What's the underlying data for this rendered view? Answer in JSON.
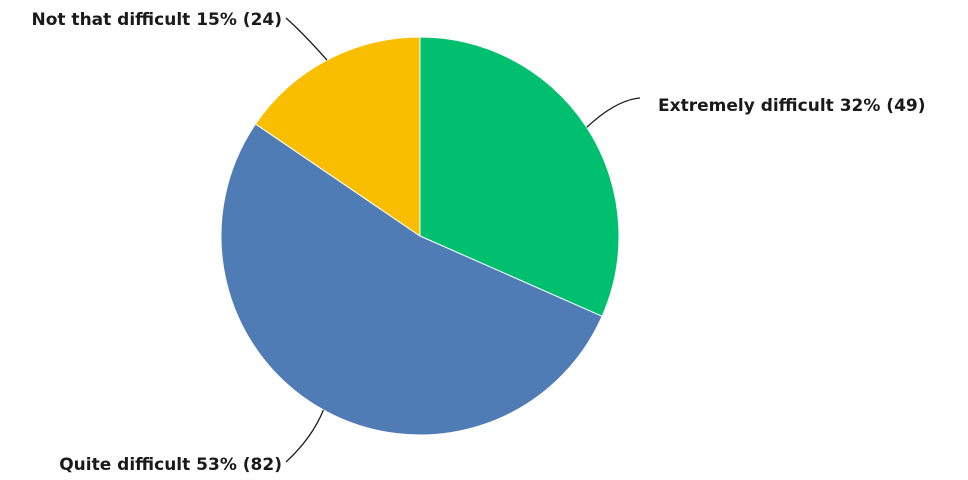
{
  "chart_data": {
    "type": "pie",
    "title": "",
    "start_angle_deg": 0,
    "direction": "clockwise",
    "slices": [
      {
        "label": "Extremely difficult",
        "percent_label": "32%",
        "count": 49,
        "color": "#00bf6f"
      },
      {
        "label": "Quite difficult",
        "percent_label": "53%",
        "count": 82,
        "color": "#507cb6"
      },
      {
        "label": "Not that difficult",
        "percent_label": "15%",
        "count": 24,
        "color": "#f9be00"
      }
    ]
  }
}
